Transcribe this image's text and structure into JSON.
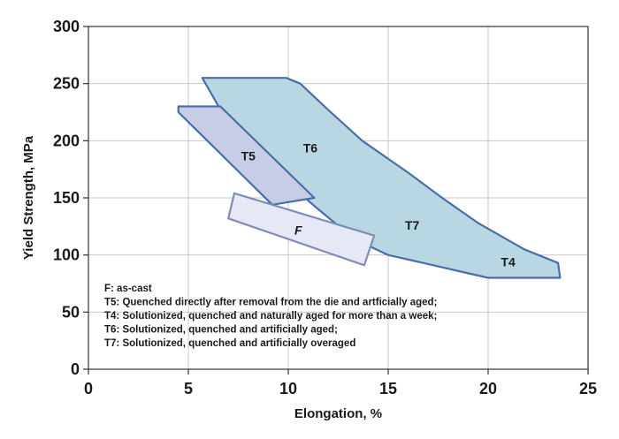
{
  "chart_data": {
    "type": "area",
    "title": "",
    "xlabel": "Elongation, %",
    "ylabel": "Yield Strength, MPa",
    "xlim": [
      0,
      25
    ],
    "ylim": [
      0,
      300
    ],
    "xticks": [
      0,
      5,
      10,
      15,
      20,
      25
    ],
    "yticks": [
      0,
      50,
      100,
      150,
      200,
      250,
      300
    ],
    "grid": true,
    "colors": {
      "T6_fill": "#b9d6e3",
      "T6_edge": "#4a6ea8",
      "T5_fill": "#c7cde6",
      "T5_edge": "#4a6ea8",
      "F_fill": "#e6e8f5",
      "F_edge": "#7e8cba"
    },
    "series": [
      {
        "name": "T6/T7/T4",
        "fill": "T6_fill",
        "edge": "T6_edge",
        "labels": [
          {
            "text": "T6",
            "x": 11.1,
            "y": 190
          },
          {
            "text": "T7",
            "x": 16.2,
            "y": 122
          },
          {
            "text": "T4",
            "x": 21.0,
            "y": 90
          }
        ],
        "points": [
          [
            5.7,
            255
          ],
          [
            9.9,
            255
          ],
          [
            10.6,
            250
          ],
          [
            12.0,
            227
          ],
          [
            13.7,
            200
          ],
          [
            16.0,
            172
          ],
          [
            17.7,
            150
          ],
          [
            19.5,
            128
          ],
          [
            21.8,
            105
          ],
          [
            23.5,
            93
          ],
          [
            23.6,
            80
          ],
          [
            23.4,
            80
          ],
          [
            20.0,
            80
          ],
          [
            15.0,
            100
          ],
          [
            13.3,
            114
          ],
          [
            11.5,
            140
          ],
          [
            9.5,
            170
          ],
          [
            7.0,
            215
          ]
        ]
      },
      {
        "name": "T5",
        "fill": "T5_fill",
        "edge": "T5_edge",
        "labels": [
          {
            "text": "T5",
            "x": 8.0,
            "y": 183
          }
        ],
        "points": [
          [
            4.5,
            230
          ],
          [
            6.6,
            230
          ],
          [
            11.3,
            150
          ],
          [
            9.2,
            144
          ],
          [
            4.5,
            225
          ]
        ]
      },
      {
        "name": "F",
        "fill": "F_fill",
        "edge": "F_edge",
        "labels": [
          {
            "text": "F",
            "x": 10.5,
            "y": 118
          }
        ],
        "points": [
          [
            7.3,
            154
          ],
          [
            14.3,
            117
          ],
          [
            13.8,
            91
          ],
          [
            7.0,
            132
          ]
        ]
      }
    ],
    "notes": [
      "F: as-cast",
      "T5: Quenched directly after removal from the die and artficially aged;",
      "T4: Solutionized, quenched and naturally aged for more than a week;",
      "T6: Solutionized, quenched and artificially aged;",
      "T7: Solutionized, quenched and artificially overaged"
    ]
  }
}
